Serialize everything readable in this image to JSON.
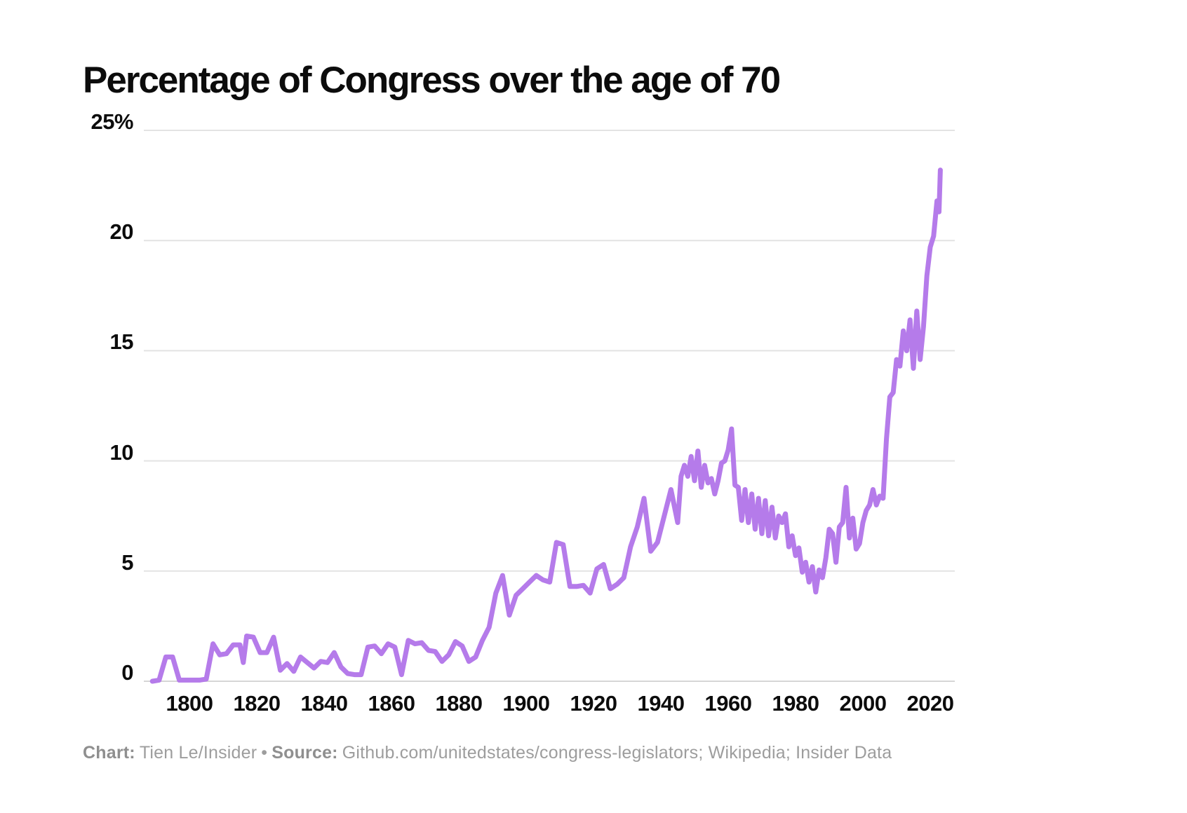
{
  "chart_data": {
    "type": "line",
    "title": "Percentage of Congress over the age of 70",
    "xlabel": "",
    "ylabel": "",
    "xlim": [
      1789,
      2027
    ],
    "ylim": [
      0,
      25
    ],
    "grid": true,
    "legend_position": "none",
    "line_color": "#b57bea",
    "grid_color": "#e3e3e3",
    "zero_line_color": "#d6d6d6",
    "x_ticks": [
      "1800",
      "1820",
      "1840",
      "1860",
      "1880",
      "1900",
      "1920",
      "1940",
      "1960",
      "1980",
      "2000",
      "2020"
    ],
    "y_ticks": [
      {
        "value": 0,
        "label": "0"
      },
      {
        "value": 5,
        "label": "5"
      },
      {
        "value": 10,
        "label": "10"
      },
      {
        "value": 15,
        "label": "15"
      },
      {
        "value": 20,
        "label": "20"
      },
      {
        "value": 25,
        "label": "25%"
      }
    ],
    "series": [
      {
        "name": "Percentage of Congress over the age of 70",
        "points": [
          [
            1789,
            0
          ],
          [
            1791,
            0.05
          ],
          [
            1793,
            1.1
          ],
          [
            1795,
            1.1
          ],
          [
            1797,
            0.05
          ],
          [
            1799,
            0.05
          ],
          [
            1801,
            0.05
          ],
          [
            1803,
            0.05
          ],
          [
            1805,
            0.1
          ],
          [
            1807,
            1.7
          ],
          [
            1809,
            1.2
          ],
          [
            1811,
            1.25
          ],
          [
            1813,
            1.65
          ],
          [
            1815,
            1.65
          ],
          [
            1816,
            0.85
          ],
          [
            1817,
            2.05
          ],
          [
            1819,
            2.0
          ],
          [
            1821,
            1.3
          ],
          [
            1823,
            1.3
          ],
          [
            1825,
            2.0
          ],
          [
            1827,
            0.5
          ],
          [
            1829,
            0.8
          ],
          [
            1831,
            0.45
          ],
          [
            1833,
            1.1
          ],
          [
            1835,
            0.85
          ],
          [
            1837,
            0.6
          ],
          [
            1839,
            0.9
          ],
          [
            1841,
            0.85
          ],
          [
            1843,
            1.3
          ],
          [
            1845,
            0.65
          ],
          [
            1847,
            0.35
          ],
          [
            1849,
            0.3
          ],
          [
            1851,
            0.3
          ],
          [
            1853,
            1.55
          ],
          [
            1855,
            1.6
          ],
          [
            1857,
            1.25
          ],
          [
            1859,
            1.7
          ],
          [
            1861,
            1.55
          ],
          [
            1863,
            0.3
          ],
          [
            1865,
            1.85
          ],
          [
            1867,
            1.7
          ],
          [
            1869,
            1.75
          ],
          [
            1871,
            1.4
          ],
          [
            1873,
            1.35
          ],
          [
            1875,
            0.9
          ],
          [
            1877,
            1.2
          ],
          [
            1879,
            1.8
          ],
          [
            1881,
            1.6
          ],
          [
            1883,
            0.9
          ],
          [
            1885,
            1.1
          ],
          [
            1887,
            1.85
          ],
          [
            1889,
            2.45
          ],
          [
            1891,
            4.0
          ],
          [
            1893,
            4.8
          ],
          [
            1895,
            3.0
          ],
          [
            1897,
            3.9
          ],
          [
            1899,
            4.2
          ],
          [
            1901,
            4.5
          ],
          [
            1903,
            4.8
          ],
          [
            1905,
            4.6
          ],
          [
            1907,
            4.5
          ],
          [
            1909,
            6.3
          ],
          [
            1911,
            6.2
          ],
          [
            1913,
            4.3
          ],
          [
            1915,
            4.3
          ],
          [
            1917,
            4.35
          ],
          [
            1919,
            4.0
          ],
          [
            1921,
            5.1
          ],
          [
            1923,
            5.3
          ],
          [
            1925,
            4.2
          ],
          [
            1927,
            4.4
          ],
          [
            1929,
            4.7
          ],
          [
            1931,
            6.1
          ],
          [
            1933,
            7.0
          ],
          [
            1935,
            8.3
          ],
          [
            1937,
            5.9
          ],
          [
            1939,
            6.3
          ],
          [
            1941,
            7.5
          ],
          [
            1943,
            8.7
          ],
          [
            1945,
            7.2
          ],
          [
            1946,
            9.3
          ],
          [
            1947,
            9.8
          ],
          [
            1948,
            9.3
          ],
          [
            1949,
            10.2
          ],
          [
            1950,
            9.1
          ],
          [
            1951,
            10.45
          ],
          [
            1952,
            8.8
          ],
          [
            1953,
            9.8
          ],
          [
            1954,
            9.0
          ],
          [
            1955,
            9.2
          ],
          [
            1956,
            8.5
          ],
          [
            1957,
            9.1
          ],
          [
            1958,
            9.9
          ],
          [
            1959,
            10.0
          ],
          [
            1960,
            10.5
          ],
          [
            1961,
            11.45
          ],
          [
            1962,
            8.9
          ],
          [
            1963,
            8.8
          ],
          [
            1964,
            7.3
          ],
          [
            1965,
            8.7
          ],
          [
            1966,
            7.2
          ],
          [
            1967,
            8.5
          ],
          [
            1968,
            6.9
          ],
          [
            1969,
            8.3
          ],
          [
            1970,
            6.7
          ],
          [
            1971,
            8.2
          ],
          [
            1972,
            6.6
          ],
          [
            1973,
            7.9
          ],
          [
            1974,
            6.5
          ],
          [
            1975,
            7.5
          ],
          [
            1976,
            7.2
          ],
          [
            1977,
            7.6
          ],
          [
            1978,
            6.1
          ],
          [
            1979,
            6.6
          ],
          [
            1980,
            5.7
          ],
          [
            1981,
            6.05
          ],
          [
            1982,
            4.95
          ],
          [
            1983,
            5.4
          ],
          [
            1984,
            4.5
          ],
          [
            1985,
            5.2
          ],
          [
            1986,
            4.05
          ],
          [
            1987,
            5.05
          ],
          [
            1988,
            4.7
          ],
          [
            1989,
            5.6
          ],
          [
            1990,
            6.9
          ],
          [
            1991,
            6.7
          ],
          [
            1992,
            5.4
          ],
          [
            1993,
            7.0
          ],
          [
            1994,
            7.2
          ],
          [
            1995,
            8.8
          ],
          [
            1996,
            6.5
          ],
          [
            1997,
            7.4
          ],
          [
            1998,
            6.0
          ],
          [
            1999,
            6.25
          ],
          [
            2000,
            7.2
          ],
          [
            2001,
            7.75
          ],
          [
            2002,
            8.0
          ],
          [
            2003,
            8.7
          ],
          [
            2004,
            8.0
          ],
          [
            2005,
            8.4
          ],
          [
            2006,
            8.3
          ],
          [
            2007,
            11.0
          ],
          [
            2008,
            12.9
          ],
          [
            2009,
            13.1
          ],
          [
            2010,
            14.6
          ],
          [
            2011,
            14.3
          ],
          [
            2012,
            15.9
          ],
          [
            2013,
            15.0
          ],
          [
            2014,
            16.4
          ],
          [
            2015,
            14.2
          ],
          [
            2016,
            16.8
          ],
          [
            2017,
            14.6
          ],
          [
            2018,
            16.1
          ],
          [
            2019,
            18.4
          ],
          [
            2020,
            19.7
          ],
          [
            2021,
            20.2
          ],
          [
            2022,
            21.8
          ],
          [
            2022.6,
            21.3
          ],
          [
            2023,
            23.2
          ]
        ]
      }
    ]
  },
  "footer": {
    "chart_label": "Chart:",
    "chart_value": "Tien Le/Insider",
    "separator": "•",
    "source_label": "Source:",
    "source_value": "Github.com/unitedstates/congress-legislators; Wikipedia; Insider Data"
  }
}
